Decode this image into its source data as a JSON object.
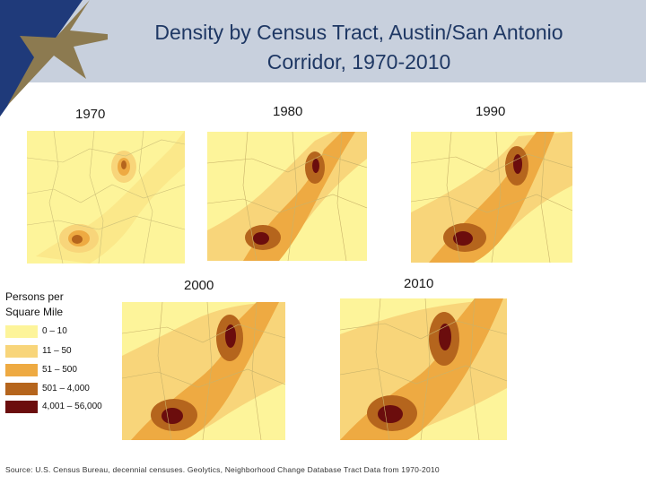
{
  "header": {
    "title": "Density by Census Tract, Austin/San Antonio Corridor, 1970-2010"
  },
  "maps": [
    {
      "year": "1970"
    },
    {
      "year": "1980"
    },
    {
      "year": "1990"
    },
    {
      "year": "2000"
    },
    {
      "year": "2010"
    }
  ],
  "legend": {
    "title_line1": "Persons per",
    "title_line2": "Square Mile",
    "items": [
      {
        "label": "0 – 10",
        "color": "#fdf49a"
      },
      {
        "label": "11 – 50",
        "color": "#f8d57a"
      },
      {
        "label": "51 – 500",
        "color": "#eeaa42"
      },
      {
        "label": "501 – 4,000",
        "color": "#b5651d"
      },
      {
        "label": "4,001 – 56,000",
        "color": "#6b0d0d"
      }
    ]
  },
  "source": "Source: U.S. Census Bureau, decennial censuses. Geolytics, Neighborhood Change Database Tract Data from 1970-2010",
  "colors": {
    "header_band": "#c8d0dd",
    "corner_blue": "#1f3a7a",
    "star_gold": "#8c7a50",
    "title_text": "#1f3864"
  }
}
